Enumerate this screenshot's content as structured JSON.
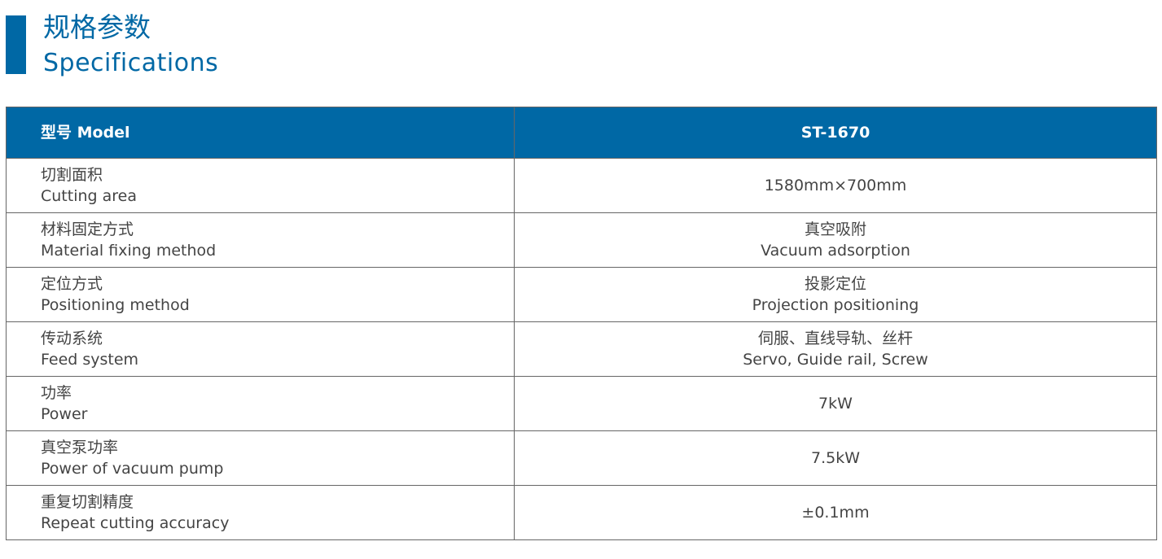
{
  "colors": {
    "accent": "#0068a5"
  },
  "title": {
    "zh": "规格参数",
    "en": "Specifications"
  },
  "header": {
    "label": "型号 Model",
    "value": "ST-1670"
  },
  "rows": [
    {
      "zh": "切割面积",
      "en": "Cutting area",
      "value_zh": "",
      "value_en": "1580mm×700mm"
    },
    {
      "zh": "材料固定方式",
      "en": "Material fixing method",
      "value_zh": "真空吸附",
      "value_en": "Vacuum adsorption"
    },
    {
      "zh": "定位方式",
      "en": "Positioning method",
      "value_zh": "投影定位",
      "value_en": "Projection positioning"
    },
    {
      "zh": "传动系统",
      "en": "Feed system",
      "value_zh": "伺服、直线导轨、丝杆",
      "value_en": "Servo, Guide rail, Screw"
    },
    {
      "zh": "功率",
      "en": "Power",
      "value_zh": "",
      "value_en": "7kW"
    },
    {
      "zh": "真空泵功率",
      "en": "Power of vacuum pump",
      "value_zh": "",
      "value_en": "7.5kW"
    },
    {
      "zh": "重复切割精度",
      "en": "Repeat cutting accuracy",
      "value_zh": "",
      "value_en": "±0.1mm"
    }
  ]
}
